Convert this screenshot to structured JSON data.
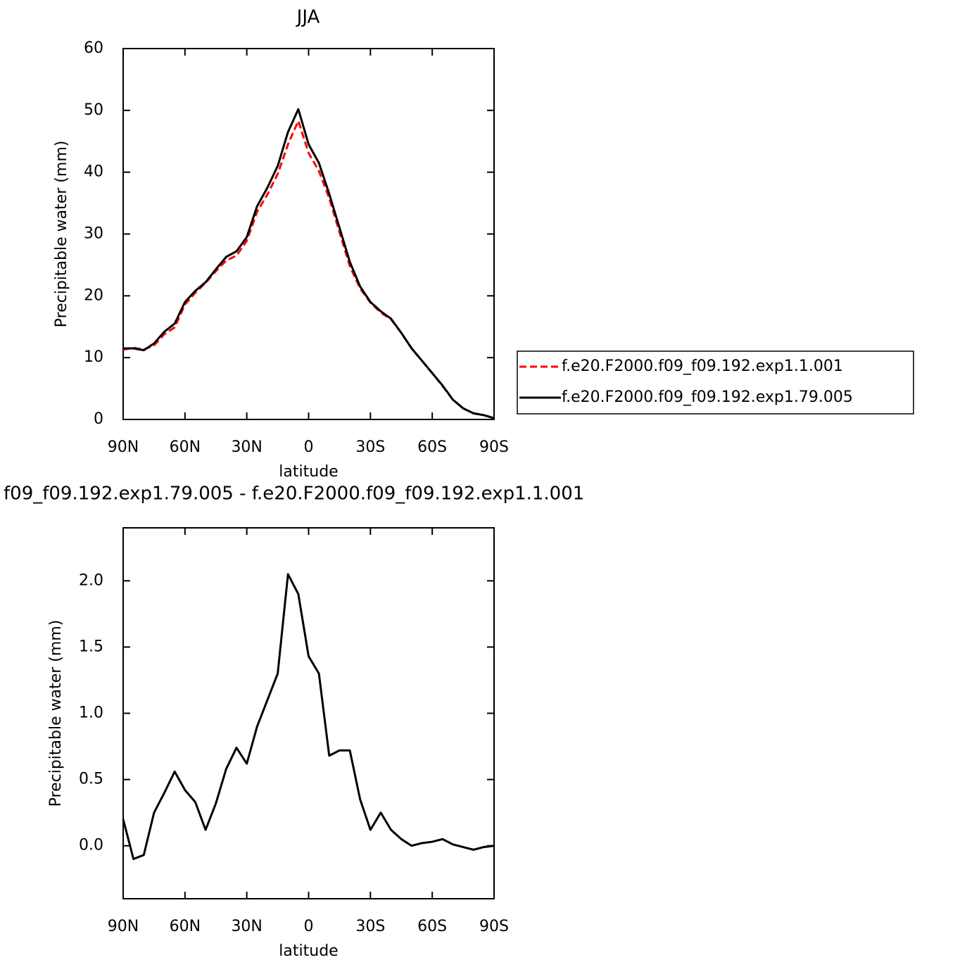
{
  "chart_data": [
    {
      "type": "line",
      "title": "JJA",
      "x_label": "latitude",
      "y_label": "Precipitable water (mm)",
      "x": [
        90,
        85,
        80,
        75,
        70,
        65,
        60,
        55,
        50,
        45,
        40,
        35,
        30,
        25,
        20,
        15,
        10,
        5,
        0,
        -5,
        -10,
        -15,
        -20,
        -25,
        -30,
        -35,
        -40,
        -45,
        -50,
        -55,
        -60,
        -65,
        -70,
        -75,
        -80,
        -85,
        -90
      ],
      "series": [
        {
          "name": "f.e20.F2000.f09_f09.192.exp1.1.001",
          "color": "#ff0000",
          "dashed": true,
          "values": [
            11.3,
            11.6,
            11.3,
            12.0,
            13.8,
            14.9,
            18.6,
            20.5,
            22.1,
            24.0,
            25.7,
            26.5,
            28.9,
            33.6,
            36.4,
            39.7,
            44.5,
            48.3,
            43.1,
            40.2,
            35.8,
            30.3,
            24.8,
            21.2,
            18.9,
            17.3,
            16.2,
            14.0,
            11.5,
            9.5,
            7.5,
            5.4,
            3.2,
            1.8,
            1.0,
            0.7,
            0.2
          ]
        },
        {
          "name": "f.e20.F2000.f09_f09.192.exp1.79.005",
          "color": "#000000",
          "dashed": false,
          "values": [
            11.5,
            11.5,
            11.2,
            12.3,
            14.2,
            15.5,
            19.0,
            20.8,
            22.2,
            24.3,
            26.3,
            27.2,
            29.5,
            34.5,
            37.5,
            41.0,
            46.5,
            50.2,
            44.5,
            41.5,
            36.5,
            31.0,
            25.5,
            21.5,
            19.0,
            17.5,
            16.3,
            14.0,
            11.5,
            9.5,
            7.5,
            5.5,
            3.2,
            1.8,
            1.0,
            0.7,
            0.2
          ]
        }
      ],
      "xlim": [
        90,
        -90
      ],
      "xticks": [
        {
          "value": 90,
          "label": "90N"
        },
        {
          "value": 60,
          "label": "60N"
        },
        {
          "value": 30,
          "label": "30N"
        },
        0,
        {
          "value": -30,
          "label": "30S"
        },
        {
          "value": -60,
          "label": "60S"
        },
        {
          "value": -90,
          "label": "90S"
        }
      ],
      "ylim": [
        0,
        60
      ],
      "yticks": [
        0,
        10,
        20,
        30,
        40,
        50,
        60
      ],
      "legend": "right"
    },
    {
      "type": "line",
      "title": "f09_f09.192.exp1.79.005 - f.e20.F2000.f09_f09.192.exp1.1.001",
      "x_label": "latitude",
      "y_label": "Precipitable water (mm)",
      "x": [
        90,
        85,
        80,
        75,
        70,
        65,
        60,
        55,
        50,
        45,
        40,
        35,
        30,
        25,
        20,
        15,
        10,
        5,
        0,
        -5,
        -10,
        -15,
        -20,
        -25,
        -30,
        -35,
        -40,
        -45,
        -50,
        -55,
        -60,
        -65,
        -70,
        -75,
        -80,
        -85,
        -90
      ],
      "series": [
        {
          "color": "#000000",
          "dashed": false,
          "values": [
            0.2,
            -0.1,
            -0.07,
            0.25,
            0.4,
            0.56,
            0.42,
            0.33,
            0.12,
            0.32,
            0.58,
            0.74,
            0.62,
            0.9,
            1.1,
            1.3,
            2.05,
            1.9,
            1.43,
            1.3,
            0.68,
            0.72,
            0.72,
            0.35,
            0.12,
            0.25,
            0.12,
            0.05,
            0.0,
            0.02,
            0.03,
            0.05,
            0.01,
            -0.01,
            -0.03,
            -0.01,
            0.0
          ]
        }
      ],
      "xlim": [
        90,
        -90
      ],
      "xticks": [
        {
          "value": 90,
          "label": "90N"
        },
        {
          "value": 60,
          "label": "60N"
        },
        {
          "value": 30,
          "label": "30N"
        },
        0,
        {
          "value": -30,
          "label": "30S"
        },
        {
          "value": -60,
          "label": "60S"
        },
        {
          "value": -90,
          "label": "90S"
        }
      ],
      "ylim": [
        -0.4,
        2.4
      ],
      "yticks": [
        {
          "value": 0,
          "label": "0.0"
        },
        0.5,
        {
          "value": 1,
          "label": "1.0"
        },
        1.5,
        {
          "value": 2,
          "label": "2.0"
        }
      ]
    }
  ]
}
